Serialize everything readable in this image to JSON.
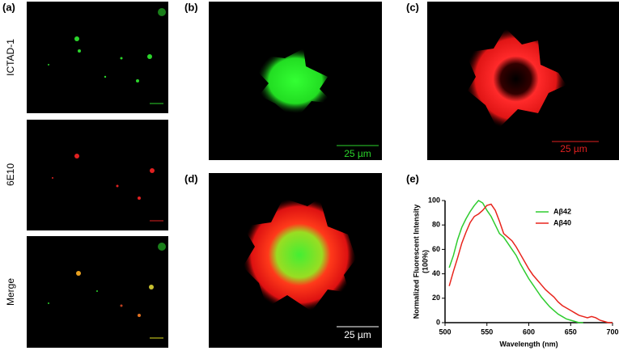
{
  "panels": {
    "a": {
      "label": "(a)",
      "rows": [
        "ICTAD-1",
        "6E10",
        "Merge"
      ]
    },
    "b": {
      "label": "(b)",
      "scale": "25 µm"
    },
    "c": {
      "label": "(c)",
      "scale": "25 µm"
    },
    "d": {
      "label": "(d)",
      "scale": "25 µm"
    },
    "e": {
      "label": "(e)"
    }
  },
  "chart_data": {
    "type": "line",
    "ylabel": [
      "Normalized Fluorescent Intensity",
      "(100%)"
    ],
    "xlabel": "Wavelength (nm)",
    "x": [
      505,
      510,
      515,
      520,
      525,
      530,
      535,
      540,
      545,
      550,
      555,
      560,
      565,
      570,
      575,
      580,
      585,
      590,
      595,
      600,
      605,
      610,
      615,
      620,
      625,
      630,
      635,
      640,
      645,
      650,
      655,
      660,
      665,
      670,
      675,
      680,
      685,
      690,
      695,
      700
    ],
    "series": [
      {
        "name": "Aβ42",
        "color": "#2ecc2e",
        "values": [
          45,
          55,
          68,
          78,
          85,
          91,
          96,
          100,
          98,
          92,
          87,
          80,
          73,
          70,
          65,
          60,
          55,
          48,
          42,
          36,
          31,
          26,
          21,
          17,
          13,
          10,
          7,
          5,
          3,
          2,
          1,
          0,
          0,
          null,
          null,
          null,
          null,
          null,
          null,
          null
        ]
      },
      {
        "name": "Aβ40",
        "color": "#e8241c",
        "values": [
          30,
          42,
          53,
          65,
          74,
          82,
          87,
          89,
          92,
          96,
          97,
          92,
          83,
          73,
          70,
          67,
          62,
          56,
          50,
          44,
          39,
          35,
          31,
          27,
          24,
          21,
          17,
          14,
          12,
          10,
          8,
          6,
          5,
          4,
          5,
          4,
          2,
          1,
          0,
          0
        ]
      }
    ],
    "xlim": [
      500,
      700
    ],
    "xticks": [
      500,
      550,
      600,
      650,
      700
    ],
    "ylim": [
      0,
      100
    ],
    "yticks": [
      0,
      20,
      40,
      60,
      80,
      100
    ],
    "legend": "upper-right"
  }
}
